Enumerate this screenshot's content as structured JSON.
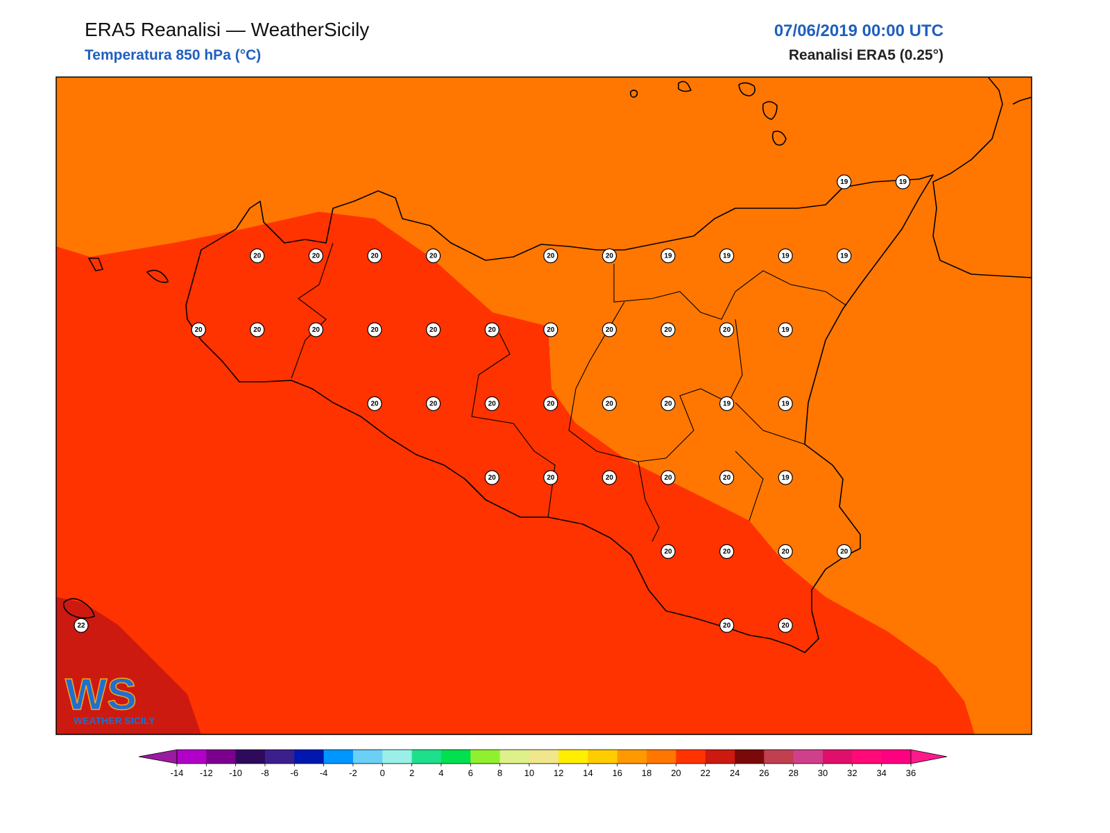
{
  "header": {
    "title": "ERA5 Reanalisi — WeatherSicily",
    "subtitle": "Temperatura 850 hPa (°C)",
    "date": "07/06/2019 00:00 UTC",
    "source": "Reanalisi ERA5 (0.25°)"
  },
  "stations": {
    "rows": [
      [
        null,
        null,
        null,
        null,
        null,
        null,
        null,
        null,
        null,
        null,
        null,
        null,
        null,
        19,
        19
      ],
      [
        null,
        null,
        null,
        20,
        20,
        20,
        20,
        null,
        20,
        20,
        19,
        19,
        19,
        19,
        null
      ],
      [
        null,
        null,
        20,
        20,
        20,
        20,
        20,
        20,
        20,
        20,
        20,
        20,
        19,
        null,
        null
      ],
      [
        null,
        null,
        null,
        null,
        null,
        20,
        20,
        20,
        20,
        20,
        20,
        19,
        19,
        null,
        null
      ],
      [
        null,
        null,
        null,
        null,
        null,
        null,
        null,
        20,
        20,
        20,
        20,
        20,
        19,
        null,
        null
      ],
      [
        null,
        null,
        null,
        null,
        null,
        null,
        null,
        null,
        null,
        null,
        20,
        20,
        20,
        20,
        null
      ],
      [
        22,
        null,
        null,
        null,
        null,
        null,
        null,
        null,
        null,
        null,
        null,
        20,
        20,
        null,
        null
      ]
    ]
  },
  "colorbar": {
    "ticks": [
      -14,
      -12,
      -10,
      -8,
      -6,
      -4,
      -2,
      0,
      2,
      4,
      6,
      8,
      10,
      12,
      14,
      16,
      18,
      20,
      22,
      24,
      26,
      28,
      30,
      32,
      34,
      36
    ],
    "colors": [
      "#b300c8",
      "#7c008e",
      "#2e0a5c",
      "#3b1f8a",
      "#0018b0",
      "#0096ff",
      "#6ccff6",
      "#9af0e8",
      "#1ee08c",
      "#00e050",
      "#90f030",
      "#ddf08a",
      "#f0e68c",
      "#ffee00",
      "#ffcc00",
      "#ff9900",
      "#ff7700",
      "#ff3300",
      "#cc1a10",
      "#7a0a0a",
      "#c04050",
      "#d0408a",
      "#e0106a",
      "#ff0a78",
      "#ff0080"
    ],
    "under_color": "#9a1aa0",
    "over_color": "#ff1a8c"
  },
  "logo": {
    "mark": "WS",
    "name": "WEATHER SICILY"
  }
}
